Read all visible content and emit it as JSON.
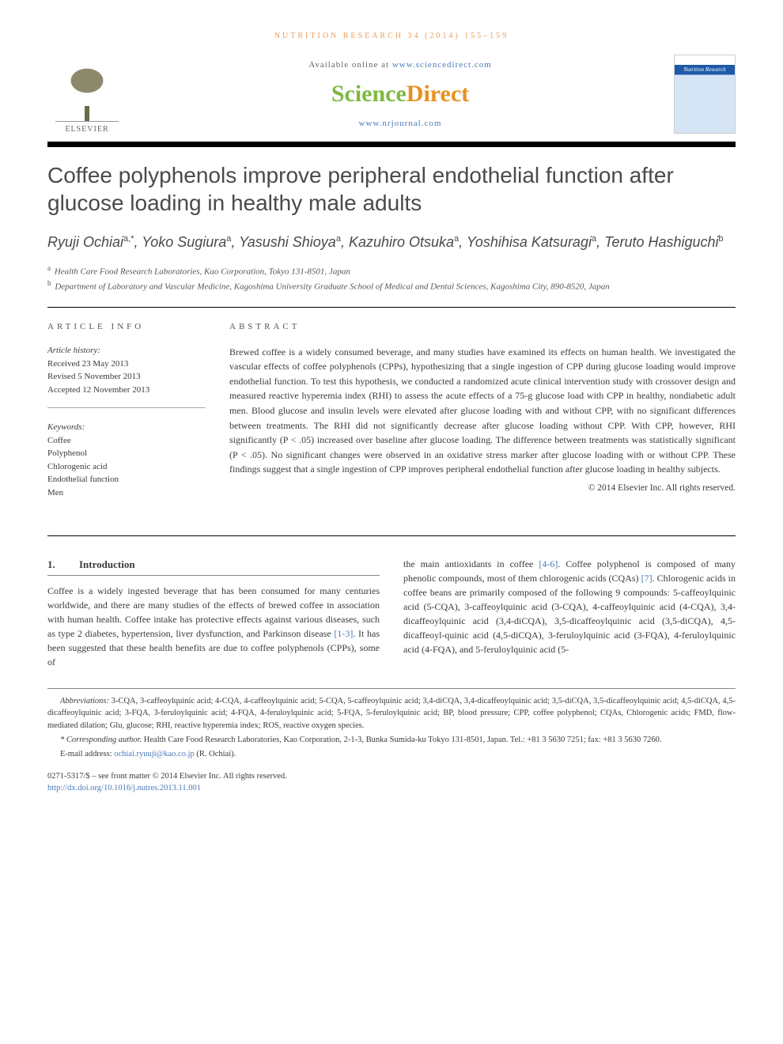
{
  "running_head": "NUTRITION RESEARCH 34 (2014) 155–159",
  "masthead": {
    "elsevier": "ELSEVIER",
    "available_prefix": "Available online at ",
    "available_url": "www.sciencedirect.com",
    "sd_science": "Science",
    "sd_direct": "Direct",
    "journal_url": "www.nrjournal.com",
    "cover_title": "Nutrition Research"
  },
  "title": "Coffee polyphenols improve peripheral endothelial function after glucose loading in healthy male adults",
  "authors_html": "Ryuji Ochiai<sup>a,*</sup>, Yoko Sugiura<sup>a</sup>, Yasushi Shioya<sup>a</sup>, Kazuhiro Otsuka<sup>a</sup>, Yoshihisa Katsuragi<sup>a</sup>, Teruto Hashiguchi<sup>b</sup>",
  "authors": [
    {
      "name": "Ryuji Ochiai",
      "marks": "a,*"
    },
    {
      "name": "Yoko Sugiura",
      "marks": "a"
    },
    {
      "name": "Yasushi Shioya",
      "marks": "a"
    },
    {
      "name": "Kazuhiro Otsuka",
      "marks": "a"
    },
    {
      "name": "Yoshihisa Katsuragi",
      "marks": "a"
    },
    {
      "name": "Teruto Hashiguchi",
      "marks": "b"
    }
  ],
  "affiliations": [
    {
      "mark": "a",
      "text": "Health Care Food Research Laboratories, Kao Corporation, Tokyo 131-8501, Japan"
    },
    {
      "mark": "b",
      "text": "Department of Laboratory and Vascular Medicine, Kagoshima University Graduate School of Medical and Dental Sciences, Kagoshima City, 890-8520, Japan"
    }
  ],
  "article_info": {
    "heading": "ARTICLE INFO",
    "history_label": "Article history:",
    "history": [
      "Received 23 May 2013",
      "Revised 5 November 2013",
      "Accepted 12 November 2013"
    ],
    "keywords_label": "Keywords:",
    "keywords": [
      "Coffee",
      "Polyphenol",
      "Chlorogenic acid",
      "Endothelial function",
      "Men"
    ]
  },
  "abstract": {
    "heading": "ABSTRACT",
    "text": "Brewed coffee is a widely consumed beverage, and many studies have examined its effects on human health. We investigated the vascular effects of coffee polyphenols (CPPs), hypothesizing that a single ingestion of CPP during glucose loading would improve endothelial function. To test this hypothesis, we conducted a randomized acute clinical intervention study with crossover design and measured reactive hyperemia index (RHI) to assess the acute effects of a 75-g glucose load with CPP in healthy, nondiabetic adult men. Blood glucose and insulin levels were elevated after glucose loading with and without CPP, with no significant differences between treatments. The RHI did not significantly decrease after glucose loading without CPP. With CPP, however, RHI significantly (P < .05) increased over baseline after glucose loading. The difference between treatments was statistically significant (P < .05). No significant changes were observed in an oxidative stress marker after glucose loading with or without CPP. These findings suggest that a single ingestion of CPP improves peripheral endothelial function after glucose loading in healthy subjects.",
    "copyright": "© 2014 Elsevier Inc. All rights reserved."
  },
  "section1": {
    "num": "1.",
    "title": "Introduction",
    "col1": "Coffee is a widely ingested beverage that has been consumed for many centuries worldwide, and there are many studies of the effects of brewed coffee in association with human health. Coffee intake has protective effects against various diseases, such as type 2 diabetes, hypertension, liver dysfunction, and Parkinson disease ",
    "ref1": "[1-3]",
    "col1b": ". It has been suggested that these health benefits are due to coffee polyphenols (CPPs), some of",
    "col2a": "the main antioxidants in coffee ",
    "ref2": "[4-6]",
    "col2b": ". Coffee polyphenol is composed of many phenolic compounds, most of them chlorogenic acids (CQAs) ",
    "ref3": "[7]",
    "col2c": ". Chlorogenic acids in coffee beans are primarily composed of the following 9 compounds: 5-caffeoylquinic acid (5-CQA), 3-caffeoylquinic acid (3-CQA), 4-caffeoylquinic acid (4-CQA), 3,4-dicaffeoylquinic acid (3,4-diCQA), 3,5-dicaffeoylquinic acid (3,5-diCQA), 4,5-dicaffeoyl-quinic acid (4,5-diCQA), 3-feruloylquinic acid (3-FQA), 4-feruloylquinic acid (4-FQA), and 5-feruloylquinic acid (5-"
  },
  "footnotes": {
    "abbrev_label": "Abbreviations:",
    "abbrev": " 3-CQA, 3-caffeoylquinic acid; 4-CQA, 4-caffeoylquinic acid; 5-CQA, 5-caffeoylquinic acid; 3,4-diCQA, 3,4-dicaffeoylquinic acid; 3,5-diCQA, 3,5-dicaffeoylquinic acid; 4,5-diCQA, 4,5-dicaffeoylquinic acid; 3-FQA, 3-feruloylquinic acid; 4-FQA, 4-feruloylquinic acid; 5-FQA, 5-feruloylquinic acid; BP, blood pressure; CPP, coffee polyphenol; CQAs, Chlorogenic acids; FMD, flow-mediated dilation; Glu, glucose; RHI, reactive hyperemia index; ROS, reactive oxygen species.",
    "corr_label": "* Corresponding author.",
    "corr": " Health Care Food Research Laboratories, Kao Corporation, 2-1-3, Bunka Sumida-ku Tokyo 131-8501, Japan. Tel.: +81 3 5630 7251; fax: +81 3 5630 7260.",
    "email_label": "E-mail address: ",
    "email": "ochiai.ryuuji@kao.co.jp",
    "email_suffix": " (R. Ochiai)."
  },
  "copyright": {
    "line1": "0271-5317/$ – see front matter © 2014 Elsevier Inc. All rights reserved.",
    "doi": "http://dx.doi.org/10.1016/j.nutres.2013.11.001"
  },
  "colors": {
    "running_head": "#e8a05a",
    "link": "#4a7ab8",
    "sd_green": "#7fb843",
    "sd_orange": "#e89020",
    "text": "#3a3a3a",
    "rule": "#000000"
  }
}
